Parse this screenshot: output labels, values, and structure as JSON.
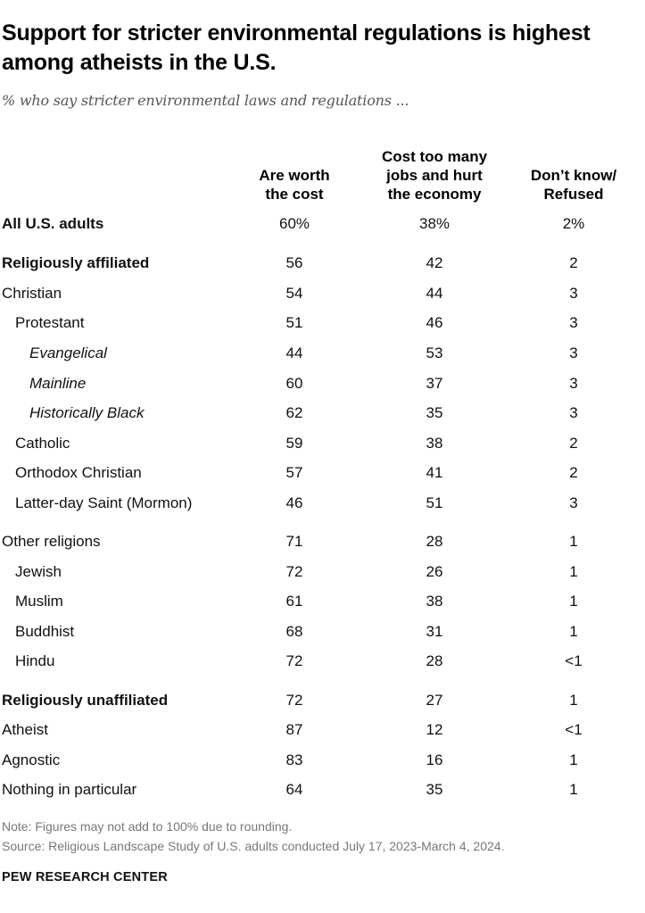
{
  "title": "Support for stricter environmental regulations is highest among atheists in the U.S.",
  "subtitle": "% who say stricter environmental laws and regulations ...",
  "chart_data": {
    "type": "table",
    "columns": [
      {
        "lines": [
          "Are worth",
          "the cost"
        ]
      },
      {
        "lines": [
          "Cost too many",
          "jobs and hurt",
          "the economy"
        ]
      },
      {
        "lines": [
          "Don’t know/",
          "Refused"
        ]
      }
    ],
    "rows": [
      {
        "label": "All U.S. adults",
        "style": "bold",
        "indent": 0,
        "values": [
          "60%",
          "38%",
          "2%"
        ]
      },
      {
        "label": "Religiously affiliated",
        "style": "bold",
        "indent": 0,
        "values": [
          "56",
          "42",
          "2"
        ]
      },
      {
        "label": "Christian",
        "style": "normal",
        "indent": 0,
        "values": [
          "54",
          "44",
          "3"
        ]
      },
      {
        "label": "Protestant",
        "style": "normal",
        "indent": 1,
        "values": [
          "51",
          "46",
          "3"
        ]
      },
      {
        "label": "Evangelical",
        "style": "italic",
        "indent": 2,
        "values": [
          "44",
          "53",
          "3"
        ]
      },
      {
        "label": "Mainline",
        "style": "italic",
        "indent": 2,
        "values": [
          "60",
          "37",
          "3"
        ]
      },
      {
        "label": "Historically Black",
        "style": "italic",
        "indent": 2,
        "values": [
          "62",
          "35",
          "3"
        ]
      },
      {
        "label": "Catholic",
        "style": "normal",
        "indent": 1,
        "values": [
          "59",
          "38",
          "2"
        ]
      },
      {
        "label": "Orthodox Christian",
        "style": "normal",
        "indent": 1,
        "values": [
          "57",
          "41",
          "2"
        ]
      },
      {
        "label": "Latter-day Saint (Mormon)",
        "style": "normal",
        "indent": 1,
        "values": [
          "46",
          "51",
          "3"
        ]
      },
      {
        "label": "Other religions",
        "style": "normal",
        "indent": 0,
        "values": [
          "71",
          "28",
          "1"
        ]
      },
      {
        "label": "Jewish",
        "style": "normal",
        "indent": 1,
        "values": [
          "72",
          "26",
          "1"
        ]
      },
      {
        "label": "Muslim",
        "style": "normal",
        "indent": 1,
        "values": [
          "61",
          "38",
          "1"
        ]
      },
      {
        "label": "Buddhist",
        "style": "normal",
        "indent": 1,
        "values": [
          "68",
          "31",
          "1"
        ]
      },
      {
        "label": "Hindu",
        "style": "normal",
        "indent": 1,
        "values": [
          "72",
          "28",
          "<1"
        ]
      },
      {
        "label": "Religiously unaffiliated",
        "style": "bold",
        "indent": 0,
        "values": [
          "72",
          "27",
          "1"
        ]
      },
      {
        "label": "Atheist",
        "style": "normal",
        "indent": 0,
        "values": [
          "87",
          "12",
          "<1"
        ]
      },
      {
        "label": "Agnostic",
        "style": "normal",
        "indent": 0,
        "values": [
          "83",
          "16",
          "1"
        ]
      },
      {
        "label": "Nothing in particular",
        "style": "normal",
        "indent": 0,
        "values": [
          "64",
          "35",
          "1"
        ]
      }
    ]
  },
  "note": "Note: Figures may not add to 100% due to rounding.",
  "source": "Source: Religious Landscape Study of U.S. adults conducted July 17, 2023-March 4, 2024.",
  "brand": "PEW RESEARCH CENTER"
}
